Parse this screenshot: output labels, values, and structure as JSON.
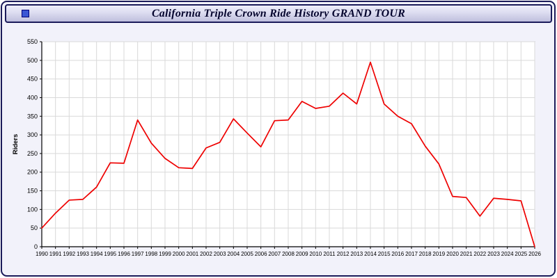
{
  "window": {
    "title": "California Triple Crown Ride History GRAND TOUR"
  },
  "chart_data": {
    "type": "line",
    "title": "California Triple Crown Ride History GRAND TOUR",
    "xlabel": "",
    "ylabel": "Riders",
    "ylim": [
      0,
      550
    ],
    "ytick_step": 50,
    "grid": true,
    "legend": "none",
    "plot_bg": "#ffffff",
    "grid_color": "#d9d9d9",
    "frame_color": "#999999",
    "axis_color": "#000000",
    "x": [
      1990,
      1991,
      1992,
      1993,
      1994,
      1995,
      1996,
      1997,
      1998,
      1999,
      2000,
      2001,
      2002,
      2003,
      2004,
      2005,
      2006,
      2007,
      2008,
      2009,
      2010,
      2011,
      2012,
      2013,
      2014,
      2015,
      2016,
      2017,
      2018,
      2019,
      2020,
      2021,
      2022,
      2023,
      2024,
      2025,
      2026
    ],
    "series": [
      {
        "name": "Riders",
        "color": "#ee0000",
        "values": [
          50,
          90,
          125,
          127,
          160,
          225,
          224,
          340,
          278,
          237,
          212,
          210,
          265,
          280,
          343,
          305,
          268,
          338,
          340,
          390,
          371,
          377,
          412,
          383,
          495,
          383,
          350,
          330,
          270,
          222,
          135,
          132,
          82,
          130,
          127,
          123,
          0
        ]
      }
    ]
  }
}
